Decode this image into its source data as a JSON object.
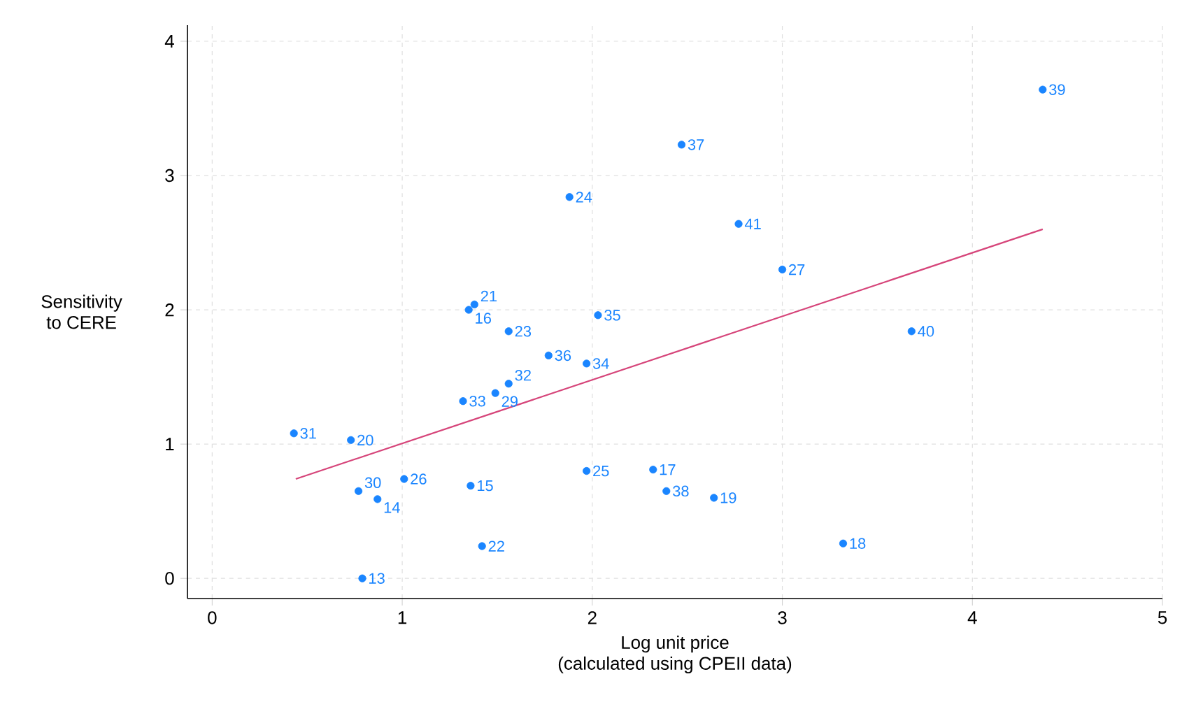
{
  "chart_data": {
    "type": "scatter",
    "xlabel": "Log unit price\n(calculated using CPEII data)",
    "ylabel": "Sensitivity\nto CERE",
    "xlim": [
      -0.13,
      5.0
    ],
    "ylim": [
      -0.15,
      4.12
    ],
    "xticks": [
      0,
      1,
      2,
      3,
      4,
      5
    ],
    "yticks": [
      0,
      1,
      2,
      3,
      4
    ],
    "grid": true,
    "marker": "circle",
    "series": [
      {
        "color": "#1a85ff",
        "x": [
          4.37,
          2.47,
          1.88,
          2.77,
          3.0,
          1.38,
          1.35,
          2.03,
          1.56,
          3.68,
          1.77,
          1.97,
          1.56,
          1.49,
          1.32,
          0.43,
          0.73,
          1.01,
          0.77,
          0.87,
          1.36,
          1.97,
          2.32,
          2.39,
          2.64,
          3.32,
          1.42,
          0.79
        ],
        "values": [
          3.64,
          3.23,
          2.84,
          2.64,
          2.3,
          2.04,
          2.0,
          1.96,
          1.84,
          1.84,
          1.66,
          1.6,
          1.45,
          1.38,
          1.32,
          1.08,
          1.03,
          0.74,
          0.65,
          0.59,
          0.69,
          0.8,
          0.81,
          0.65,
          0.6,
          0.26,
          0.24,
          0.0
        ]
      },
      {
        "type": "line",
        "color": "#d6457a",
        "x": [
          0.44,
          4.37
        ],
        "values": [
          0.74,
          2.6
        ],
        "line_style": "solid",
        "marker": "none"
      }
    ],
    "annotations": [
      {
        "text": "39",
        "x": 4.37,
        "y": 3.64
      },
      {
        "text": "37",
        "x": 2.47,
        "y": 3.23
      },
      {
        "text": "24",
        "x": 1.88,
        "y": 2.84
      },
      {
        "text": "41",
        "x": 2.77,
        "y": 2.64
      },
      {
        "text": "27",
        "x": 3.0,
        "y": 2.3
      },
      {
        "text": "21",
        "x": 1.38,
        "y": 2.04
      },
      {
        "text": "16",
        "x": 1.35,
        "y": 2.0
      },
      {
        "text": "35",
        "x": 2.03,
        "y": 1.96
      },
      {
        "text": "23",
        "x": 1.56,
        "y": 1.84
      },
      {
        "text": "40",
        "x": 3.68,
        "y": 1.84
      },
      {
        "text": "36",
        "x": 1.77,
        "y": 1.66
      },
      {
        "text": "34",
        "x": 1.97,
        "y": 1.6
      },
      {
        "text": "32",
        "x": 1.56,
        "y": 1.45
      },
      {
        "text": "29",
        "x": 1.49,
        "y": 1.38
      },
      {
        "text": "33",
        "x": 1.32,
        "y": 1.32
      },
      {
        "text": "31",
        "x": 0.43,
        "y": 1.08
      },
      {
        "text": "20",
        "x": 0.73,
        "y": 1.03
      },
      {
        "text": "26",
        "x": 1.01,
        "y": 0.74
      },
      {
        "text": "30",
        "x": 0.77,
        "y": 0.65
      },
      {
        "text": "14",
        "x": 0.87,
        "y": 0.59
      },
      {
        "text": "15",
        "x": 1.36,
        "y": 0.69
      },
      {
        "text": "25",
        "x": 1.97,
        "y": 0.8
      },
      {
        "text": "17",
        "x": 2.32,
        "y": 0.81
      },
      {
        "text": "38",
        "x": 2.39,
        "y": 0.65
      },
      {
        "text": "19",
        "x": 2.64,
        "y": 0.6
      },
      {
        "text": "18",
        "x": 3.32,
        "y": 0.26
      },
      {
        "text": "22",
        "x": 1.42,
        "y": 0.24
      },
      {
        "text": "13",
        "x": 0.79,
        "y": 0.0
      }
    ]
  }
}
